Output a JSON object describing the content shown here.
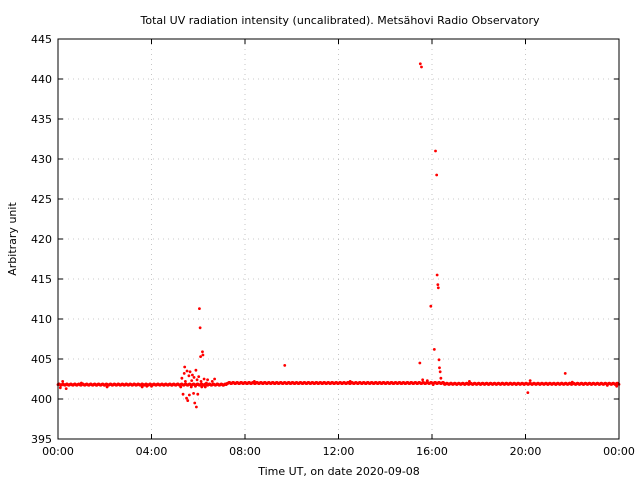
{
  "chart_data": {
    "type": "scatter",
    "title": "Total UV radiation intensity (uncalibrated). Metsähovi Radio Observatory",
    "xlabel": "Time UT, on date 2020-09-08",
    "ylabel": "Arbitrary unit",
    "xlim": [
      0,
      24
    ],
    "ylim": [
      395,
      445
    ],
    "x_ticks": [
      {
        "value": 0,
        "label": "00:00"
      },
      {
        "value": 4,
        "label": "04:00"
      },
      {
        "value": 8,
        "label": "08:00"
      },
      {
        "value": 12,
        "label": "12:00"
      },
      {
        "value": 16,
        "label": "16:00"
      },
      {
        "value": 20,
        "label": "20:00"
      },
      {
        "value": 24,
        "label": "00:00"
      }
    ],
    "y_ticks": [
      395,
      400,
      405,
      410,
      415,
      420,
      425,
      430,
      435,
      440,
      445
    ],
    "grid": true,
    "color": "#ff0000",
    "baseline_series": {
      "x_start": 0,
      "x_end": 24,
      "step": 0.02,
      "segments": [
        {
          "x_from": 0,
          "x_to": 7.2,
          "y": 401.8
        },
        {
          "x_from": 7.2,
          "x_to": 16.5,
          "y": 402.0
        },
        {
          "x_from": 16.5,
          "x_to": 24,
          "y": 401.9
        }
      ]
    },
    "points": [
      {
        "x": 0.1,
        "y": 401.4
      },
      {
        "x": 0.2,
        "y": 402.2
      },
      {
        "x": 0.35,
        "y": 401.3
      },
      {
        "x": 1.0,
        "y": 402.0
      },
      {
        "x": 2.1,
        "y": 401.5
      },
      {
        "x": 3.6,
        "y": 401.5
      },
      {
        "x": 3.8,
        "y": 401.6
      },
      {
        "x": 4.0,
        "y": 401.6
      },
      {
        "x": 5.25,
        "y": 401.5
      },
      {
        "x": 5.3,
        "y": 402.6
      },
      {
        "x": 5.35,
        "y": 400.6
      },
      {
        "x": 5.4,
        "y": 403.2
      },
      {
        "x": 5.42,
        "y": 404.0
      },
      {
        "x": 5.45,
        "y": 402.2
      },
      {
        "x": 5.5,
        "y": 400.1
      },
      {
        "x": 5.52,
        "y": 403.5
      },
      {
        "x": 5.55,
        "y": 399.8
      },
      {
        "x": 5.6,
        "y": 402.9
      },
      {
        "x": 5.62,
        "y": 400.5
      },
      {
        "x": 5.65,
        "y": 403.4
      },
      {
        "x": 5.7,
        "y": 401.5
      },
      {
        "x": 5.72,
        "y": 402.3
      },
      {
        "x": 5.75,
        "y": 403.0
      },
      {
        "x": 5.8,
        "y": 400.7
      },
      {
        "x": 5.82,
        "y": 402.7
      },
      {
        "x": 5.85,
        "y": 399.5
      },
      {
        "x": 5.88,
        "y": 401.6
      },
      {
        "x": 5.9,
        "y": 403.6
      },
      {
        "x": 5.92,
        "y": 399.0
      },
      {
        "x": 5.95,
        "y": 402.4
      },
      {
        "x": 5.98,
        "y": 400.6
      },
      {
        "x": 6.0,
        "y": 401.8
      },
      {
        "x": 6.02,
        "y": 402.8
      },
      {
        "x": 6.05,
        "y": 411.3
      },
      {
        "x": 6.08,
        "y": 408.9
      },
      {
        "x": 6.1,
        "y": 405.3
      },
      {
        "x": 6.12,
        "y": 402.2
      },
      {
        "x": 6.15,
        "y": 401.5
      },
      {
        "x": 6.18,
        "y": 405.9
      },
      {
        "x": 6.2,
        "y": 405.5
      },
      {
        "x": 6.25,
        "y": 402.5
      },
      {
        "x": 6.3,
        "y": 401.5
      },
      {
        "x": 6.35,
        "y": 402.0
      },
      {
        "x": 6.4,
        "y": 402.4
      },
      {
        "x": 6.5,
        "y": 401.8
      },
      {
        "x": 6.6,
        "y": 402.2
      },
      {
        "x": 6.7,
        "y": 402.5
      },
      {
        "x": 8.4,
        "y": 402.2
      },
      {
        "x": 9.7,
        "y": 404.2
      },
      {
        "x": 12.5,
        "y": 402.2
      },
      {
        "x": 15.48,
        "y": 404.5
      },
      {
        "x": 15.5,
        "y": 441.9
      },
      {
        "x": 15.55,
        "y": 441.5
      },
      {
        "x": 15.6,
        "y": 402.4
      },
      {
        "x": 15.8,
        "y": 402.3
      },
      {
        "x": 15.95,
        "y": 411.6
      },
      {
        "x": 16.05,
        "y": 401.8
      },
      {
        "x": 16.1,
        "y": 406.2
      },
      {
        "x": 16.15,
        "y": 431.0
      },
      {
        "x": 16.2,
        "y": 428.0
      },
      {
        "x": 16.22,
        "y": 415.5
      },
      {
        "x": 16.25,
        "y": 414.3
      },
      {
        "x": 16.27,
        "y": 413.9
      },
      {
        "x": 16.3,
        "y": 404.9
      },
      {
        "x": 16.32,
        "y": 403.9
      },
      {
        "x": 16.35,
        "y": 403.4
      },
      {
        "x": 16.38,
        "y": 402.6
      },
      {
        "x": 17.6,
        "y": 402.2
      },
      {
        "x": 20.1,
        "y": 400.8
      },
      {
        "x": 20.2,
        "y": 402.3
      },
      {
        "x": 21.7,
        "y": 403.2
      },
      {
        "x": 22.0,
        "y": 402.1
      },
      {
        "x": 23.5,
        "y": 401.7
      },
      {
        "x": 23.9,
        "y": 401.6
      }
    ]
  }
}
